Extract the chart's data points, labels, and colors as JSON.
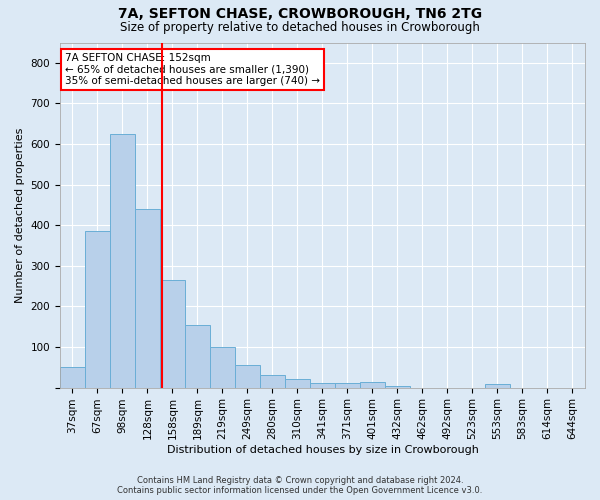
{
  "title": "7A, SEFTON CHASE, CROWBOROUGH, TN6 2TG",
  "subtitle": "Size of property relative to detached houses in Crowborough",
  "xlabel": "Distribution of detached houses by size in Crowborough",
  "ylabel": "Number of detached properties",
  "footer_line1": "Contains HM Land Registry data © Crown copyright and database right 2024.",
  "footer_line2": "Contains public sector information licensed under the Open Government Licence v3.0.",
  "categories": [
    "37sqm",
    "67sqm",
    "98sqm",
    "128sqm",
    "158sqm",
    "189sqm",
    "219sqm",
    "249sqm",
    "280sqm",
    "310sqm",
    "341sqm",
    "371sqm",
    "401sqm",
    "432sqm",
    "462sqm",
    "492sqm",
    "523sqm",
    "553sqm",
    "583sqm",
    "614sqm",
    "644sqm"
  ],
  "values": [
    50,
    385,
    625,
    440,
    265,
    155,
    100,
    55,
    30,
    20,
    12,
    12,
    15,
    5,
    0,
    0,
    0,
    8,
    0,
    0,
    0
  ],
  "bar_color": "#b8d0ea",
  "bar_edge_color": "#6aaed6",
  "vline_color": "red",
  "vline_x": 3.6,
  "annotation_text": "7A SEFTON CHASE: 152sqm\n← 65% of detached houses are smaller (1,390)\n35% of semi-detached houses are larger (740) →",
  "annotation_box_color": "white",
  "annotation_box_edge_color": "red",
  "ylim": [
    0,
    850
  ],
  "yticks": [
    0,
    100,
    200,
    300,
    400,
    500,
    600,
    700,
    800
  ],
  "background_color": "#dce9f5",
  "grid_color": "white",
  "title_fontsize": 10,
  "subtitle_fontsize": 8.5,
  "ylabel_fontsize": 8,
  "xlabel_fontsize": 8,
  "tick_fontsize": 7.5,
  "annotation_fontsize": 7.5,
  "footer_fontsize": 6
}
